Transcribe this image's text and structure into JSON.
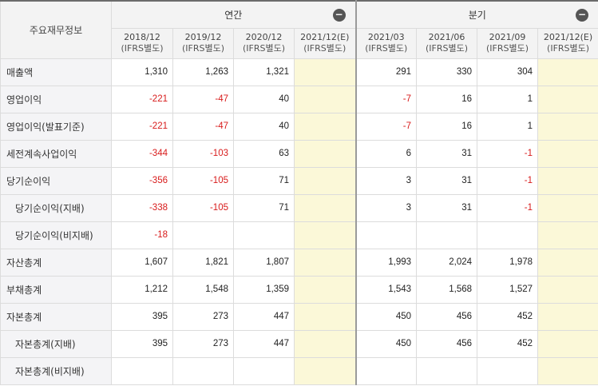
{
  "header": {
    "corner_label": "주요재무정보",
    "annual_label": "연간",
    "quarterly_label": "분기",
    "collapse_glyph": "−",
    "annual_periods": [
      {
        "date": "2018/12",
        "basis": "(IFRS별도)"
      },
      {
        "date": "2019/12",
        "basis": "(IFRS별도)"
      },
      {
        "date": "2020/12",
        "basis": "(IFRS별도)"
      },
      {
        "date": "2021/12(E)",
        "basis": "(IFRS별도)"
      }
    ],
    "quarterly_periods": [
      {
        "date": "2021/03",
        "basis": "(IFRS별도)"
      },
      {
        "date": "2021/06",
        "basis": "(IFRS별도)"
      },
      {
        "date": "2021/09",
        "basis": "(IFRS별도)"
      },
      {
        "date": "2021/12(E)",
        "basis": "(IFRS별도)"
      }
    ]
  },
  "rows": [
    {
      "label": "매출액",
      "indent": false,
      "annual": [
        "1,310",
        "1,263",
        "1,321",
        ""
      ],
      "quarterly": [
        "291",
        "330",
        "304",
        ""
      ]
    },
    {
      "label": "영업이익",
      "indent": false,
      "annual": [
        "-221",
        "-47",
        "40",
        ""
      ],
      "quarterly": [
        "-7",
        "16",
        "1",
        ""
      ]
    },
    {
      "label": "영업이익(발표기준)",
      "indent": false,
      "annual": [
        "-221",
        "-47",
        "40",
        ""
      ],
      "quarterly": [
        "-7",
        "16",
        "1",
        ""
      ]
    },
    {
      "label": "세전계속사업이익",
      "indent": false,
      "annual": [
        "-344",
        "-103",
        "63",
        ""
      ],
      "quarterly": [
        "6",
        "31",
        "-1",
        ""
      ]
    },
    {
      "label": "당기순이익",
      "indent": false,
      "annual": [
        "-356",
        "-105",
        "71",
        ""
      ],
      "quarterly": [
        "3",
        "31",
        "-1",
        ""
      ]
    },
    {
      "label": "당기순이익(지배)",
      "indent": true,
      "annual": [
        "-338",
        "-105",
        "71",
        ""
      ],
      "quarterly": [
        "3",
        "31",
        "-1",
        ""
      ]
    },
    {
      "label": "당기순이익(비지배)",
      "indent": true,
      "annual": [
        "-18",
        "",
        "",
        ""
      ],
      "quarterly": [
        "",
        "",
        "",
        ""
      ]
    },
    {
      "label": "자산총계",
      "indent": false,
      "annual": [
        "1,607",
        "1,821",
        "1,807",
        ""
      ],
      "quarterly": [
        "1,993",
        "2,024",
        "1,978",
        ""
      ]
    },
    {
      "label": "부채총계",
      "indent": false,
      "annual": [
        "1,212",
        "1,548",
        "1,359",
        ""
      ],
      "quarterly": [
        "1,543",
        "1,568",
        "1,527",
        ""
      ]
    },
    {
      "label": "자본총계",
      "indent": false,
      "annual": [
        "395",
        "273",
        "447",
        ""
      ],
      "quarterly": [
        "450",
        "456",
        "452",
        ""
      ]
    },
    {
      "label": "자본총계(지배)",
      "indent": true,
      "annual": [
        "395",
        "273",
        "447",
        ""
      ],
      "quarterly": [
        "450",
        "456",
        "452",
        ""
      ]
    },
    {
      "label": "자본총계(비지배)",
      "indent": true,
      "annual": [
        "",
        "",
        "",
        ""
      ],
      "quarterly": [
        "",
        "",
        "",
        ""
      ]
    }
  ],
  "colors": {
    "negative": "#d81b1b",
    "estimate_bg": "#fbf8d8",
    "label_bg": "#f4f4f6"
  }
}
